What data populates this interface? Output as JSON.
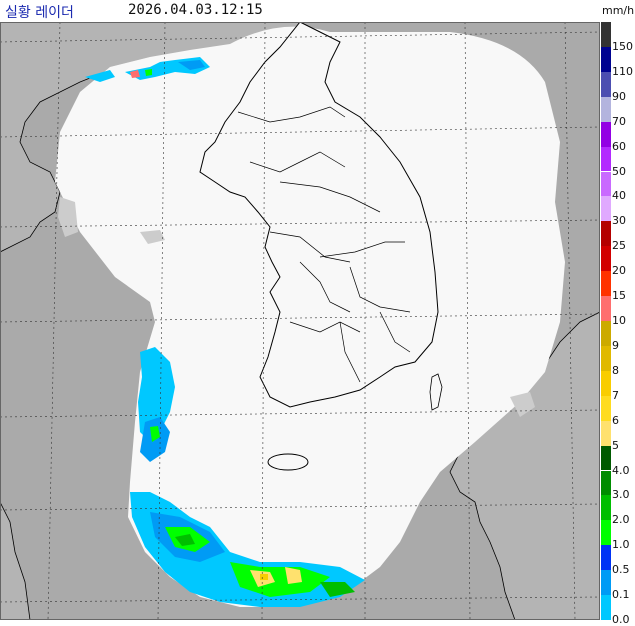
{
  "header": {
    "title": "실황 레이더",
    "timestamp": "2026.04.03.12:15"
  },
  "legend": {
    "unit": "mm/h",
    "levels": [
      {
        "label": "150",
        "color": "#333333"
      },
      {
        "label": "110",
        "color": "#000390"
      },
      {
        "label": "90",
        "color": "#4c4eb1"
      },
      {
        "label": "70",
        "color": "#b3b4de"
      },
      {
        "label": "60",
        "color": "#9300e4"
      },
      {
        "label": "50",
        "color": "#b329ff"
      },
      {
        "label": "40",
        "color": "#c969ff"
      },
      {
        "label": "30",
        "color": "#e0a9ff"
      },
      {
        "label": "25",
        "color": "#b40000"
      },
      {
        "label": "20",
        "color": "#d20000"
      },
      {
        "label": "15",
        "color": "#ff3200"
      },
      {
        "label": "10",
        "color": "#ff6e6e"
      },
      {
        "label": "9",
        "color": "#ccaa00"
      },
      {
        "label": "8",
        "color": "#e0b900"
      },
      {
        "label": "7",
        "color": "#f9cd00"
      },
      {
        "label": "6",
        "color": "#ffdc1f"
      },
      {
        "label": "5",
        "color": "#ffe16e"
      },
      {
        "label": "4.0",
        "color": "#005a00"
      },
      {
        "label": "3.0",
        "color": "#008c00"
      },
      {
        "label": "2.0",
        "color": "#00be00"
      },
      {
        "label": "1.0",
        "color": "#00ff00"
      },
      {
        "label": "0.5",
        "color": "#0033f5"
      },
      {
        "label": "0.1",
        "color": "#009bf5"
      },
      {
        "label": "0.0",
        "color": "#00c8ff"
      }
    ]
  },
  "map": {
    "colors": {
      "sea": "#aaaaaa",
      "coverage": "#f8f8f8",
      "land": "#b4b4b4",
      "border": "#000000",
      "grid": "#333333"
    }
  }
}
